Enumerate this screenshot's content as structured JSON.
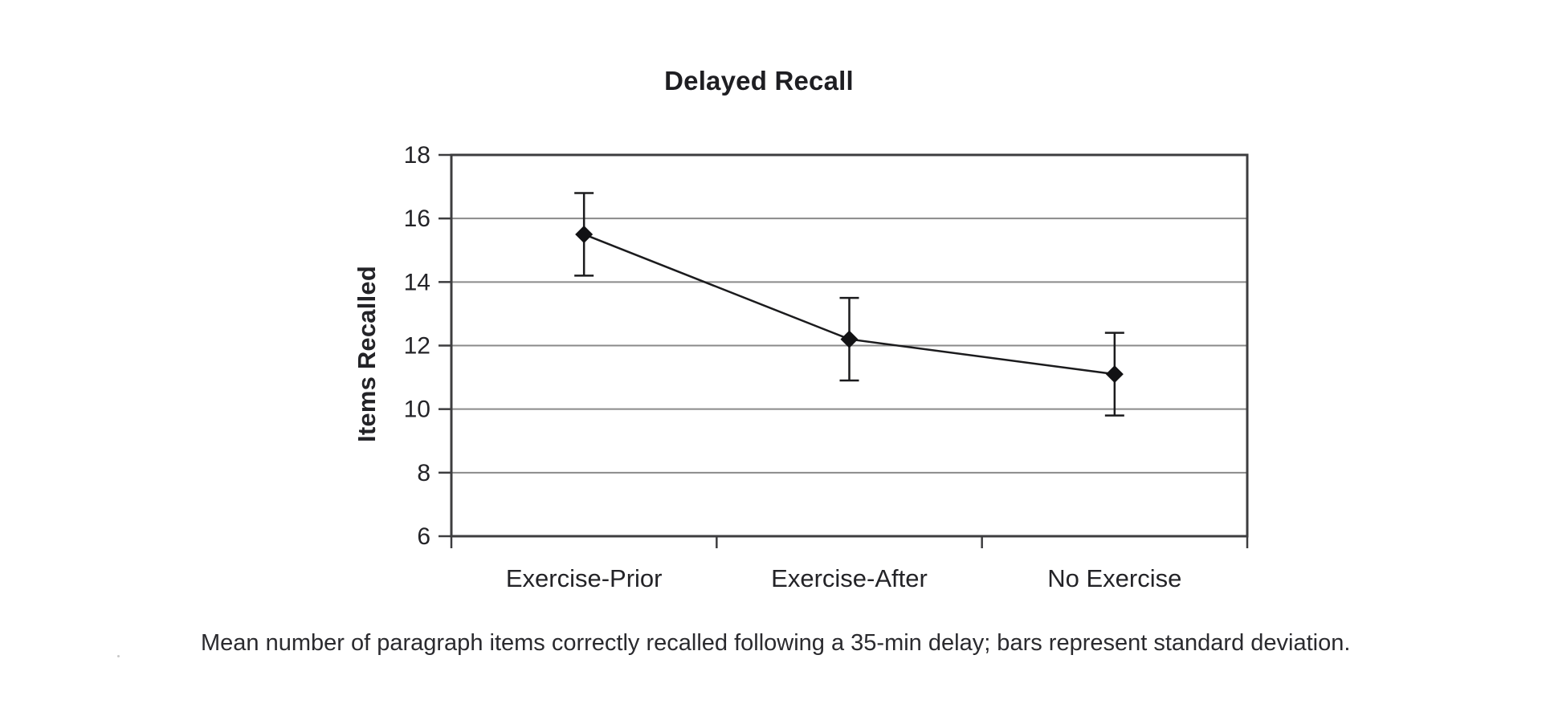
{
  "figure": {
    "title": "Delayed Recall",
    "caption": "Mean number of paragraph items correctly recalled following a 35-min delay; bars represent standard deviation."
  },
  "chart_data": {
    "type": "line",
    "title": "Delayed Recall",
    "xlabel": "",
    "ylabel": "Items Recalled",
    "categories": [
      "Exercise-Prior",
      "Exercise-After",
      "No Exercise"
    ],
    "series": [
      {
        "name": "Items Recalled (mean)",
        "values": [
          15.5,
          12.2,
          11.1
        ],
        "sd": [
          1.3,
          1.3,
          1.3
        ]
      }
    ],
    "error_bars": "standard deviation",
    "marker": "diamond",
    "ylim": [
      6,
      18
    ],
    "yticks": [
      6,
      8,
      10,
      12,
      14,
      16,
      18
    ],
    "grid": "horizontal",
    "legend": "none",
    "colors": {
      "line": "#1b1b1d",
      "marker": "#121214",
      "grid": "#8a8a8a",
      "frame": "#3d3d3f",
      "text": "#232327"
    }
  }
}
